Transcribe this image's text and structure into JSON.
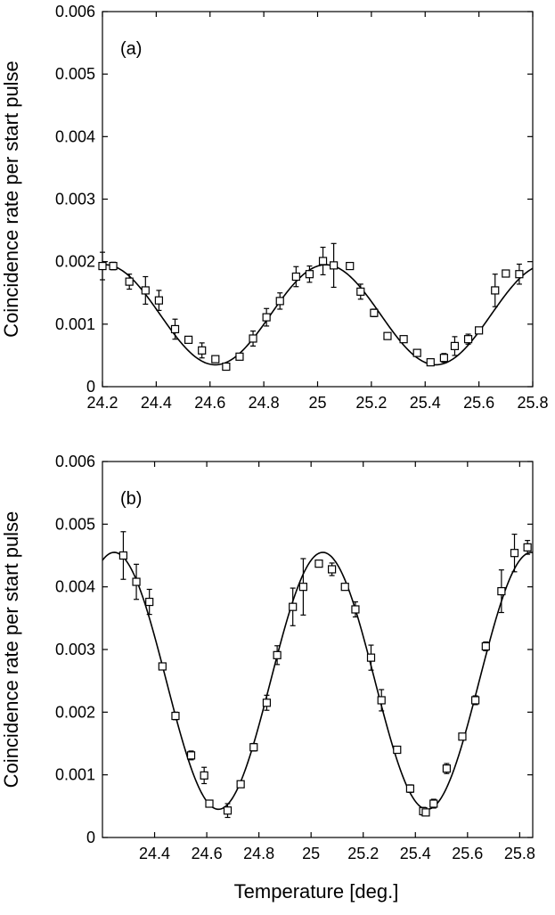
{
  "xlabel": "Temperature [deg.]",
  "chart_data": [
    {
      "type": "scatter",
      "panel_label": "(a)",
      "ylabel": "Coincidence rate per start pulse",
      "xlim": [
        24.2,
        25.8
      ],
      "ylim": [
        0,
        0.006
      ],
      "xticks": [
        24.2,
        24.4,
        24.6,
        24.8,
        25.0,
        25.2,
        25.4,
        25.6,
        25.8
      ],
      "xtick_labels": [
        "24.2",
        "24.4",
        "24.6",
        "24.8",
        "25",
        "25.2",
        "25.4",
        "25.6",
        "25.8"
      ],
      "yticks": [
        0,
        0.001,
        0.002,
        0.003,
        0.004,
        0.005,
        0.006
      ],
      "ytick_labels": [
        "0",
        "0.001",
        "0.002",
        "0.003",
        "0.004",
        "0.005",
        "0.006"
      ],
      "grid": false,
      "points": [
        {
          "x": 24.2,
          "y": 0.00193,
          "err": 0.00022
        },
        {
          "x": 24.24,
          "y": 0.00193,
          "err": 6e-05
        },
        {
          "x": 24.3,
          "y": 0.00168,
          "err": 0.00012
        },
        {
          "x": 24.36,
          "y": 0.00154,
          "err": 0.00022
        },
        {
          "x": 24.41,
          "y": 0.00138,
          "err": 0.00016
        },
        {
          "x": 24.47,
          "y": 0.00092,
          "err": 0.00016
        },
        {
          "x": 24.52,
          "y": 0.00075,
          "err": 5e-05
        },
        {
          "x": 24.57,
          "y": 0.00058,
          "err": 0.00012
        },
        {
          "x": 24.62,
          "y": 0.00044,
          "err": 5e-05
        },
        {
          "x": 24.66,
          "y": 0.00032,
          "err": 5e-05
        },
        {
          "x": 24.71,
          "y": 0.00048,
          "err": 4e-05
        },
        {
          "x": 24.76,
          "y": 0.00077,
          "err": 0.00012
        },
        {
          "x": 24.81,
          "y": 0.00111,
          "err": 0.00014
        },
        {
          "x": 24.86,
          "y": 0.00137,
          "err": 0.00013
        },
        {
          "x": 24.92,
          "y": 0.00176,
          "err": 0.00016
        },
        {
          "x": 24.97,
          "y": 0.0018,
          "err": 0.00013
        },
        {
          "x": 25.02,
          "y": 0.00201,
          "err": 0.00022
        },
        {
          "x": 25.06,
          "y": 0.00194,
          "err": 0.00035
        },
        {
          "x": 25.12,
          "y": 0.00193,
          "err": 5e-05
        },
        {
          "x": 25.16,
          "y": 0.00152,
          "err": 0.00012
        },
        {
          "x": 25.21,
          "y": 0.00118,
          "err": 6e-05
        },
        {
          "x": 25.26,
          "y": 0.00081,
          "err": 5e-05
        },
        {
          "x": 25.32,
          "y": 0.00076,
          "err": 5e-05
        },
        {
          "x": 25.37,
          "y": 0.00054,
          "err": 5e-05
        },
        {
          "x": 25.42,
          "y": 0.00039,
          "err": 5e-05
        },
        {
          "x": 25.47,
          "y": 0.00046,
          "err": 7e-05
        },
        {
          "x": 25.51,
          "y": 0.00065,
          "err": 0.00015
        },
        {
          "x": 25.56,
          "y": 0.00076,
          "err": 8e-05
        },
        {
          "x": 25.6,
          "y": 0.0009,
          "err": 5e-05
        },
        {
          "x": 25.66,
          "y": 0.00154,
          "err": 0.00026
        },
        {
          "x": 25.7,
          "y": 0.00181,
          "err": 5e-05
        },
        {
          "x": 25.75,
          "y": 0.0018,
          "err": 0.00016
        }
      ],
      "fit": {
        "offset": 0.00115,
        "amplitude": 0.0008,
        "center": 25.03,
        "period": 0.82,
        "color": "#000000"
      }
    },
    {
      "type": "scatter",
      "panel_label": "(b)",
      "ylabel": "Coincidence rate per start pulse",
      "xlim": [
        24.2,
        25.85
      ],
      "ylim": [
        0,
        0.006
      ],
      "xticks": [
        24.4,
        24.6,
        24.8,
        25.0,
        25.2,
        25.4,
        25.6,
        25.8
      ],
      "xtick_labels": [
        "24.4",
        "24.6",
        "24.8",
        "25",
        "25.2",
        "25.4",
        "25.6",
        "25.8"
      ],
      "yticks": [
        0,
        0.001,
        0.002,
        0.003,
        0.004,
        0.005,
        0.006
      ],
      "ytick_labels": [
        "0",
        "0.001",
        "0.002",
        "0.003",
        "0.004",
        "0.005",
        "0.006"
      ],
      "grid": false,
      "points": [
        {
          "x": 24.28,
          "y": 0.0045,
          "err": 0.00038
        },
        {
          "x": 24.33,
          "y": 0.00408,
          "err": 0.00028
        },
        {
          "x": 24.38,
          "y": 0.00376,
          "err": 0.0002
        },
        {
          "x": 24.43,
          "y": 0.00273,
          "err": 5e-05
        },
        {
          "x": 24.48,
          "y": 0.00194,
          "err": 6e-05
        },
        {
          "x": 24.54,
          "y": 0.00131,
          "err": 7e-05
        },
        {
          "x": 24.59,
          "y": 0.00099,
          "err": 0.00013
        },
        {
          "x": 24.61,
          "y": 0.00054,
          "err": 5e-05
        },
        {
          "x": 24.68,
          "y": 0.00043,
          "err": 0.00011
        },
        {
          "x": 24.73,
          "y": 0.00085,
          "err": 5e-05
        },
        {
          "x": 24.78,
          "y": 0.00144,
          "err": 6e-05
        },
        {
          "x": 24.83,
          "y": 0.00215,
          "err": 0.00012
        },
        {
          "x": 24.87,
          "y": 0.00291,
          "err": 0.00015
        },
        {
          "x": 24.93,
          "y": 0.00368,
          "err": 0.0003
        },
        {
          "x": 24.97,
          "y": 0.004,
          "err": 0.00045
        },
        {
          "x": 25.03,
          "y": 0.00437,
          "err": 5e-05
        },
        {
          "x": 25.08,
          "y": 0.00428,
          "err": 0.0001
        },
        {
          "x": 25.13,
          "y": 0.004,
          "err": 5e-05
        },
        {
          "x": 25.17,
          "y": 0.00364,
          "err": 0.00012
        },
        {
          "x": 25.23,
          "y": 0.00287,
          "err": 0.0002
        },
        {
          "x": 25.27,
          "y": 0.00219,
          "err": 0.00017
        },
        {
          "x": 25.33,
          "y": 0.0014,
          "err": 5e-05
        },
        {
          "x": 25.38,
          "y": 0.00078,
          "err": 6e-05
        },
        {
          "x": 25.43,
          "y": 0.00042,
          "err": 6e-05
        },
        {
          "x": 25.44,
          "y": 0.0004,
          "err": 5e-05
        },
        {
          "x": 25.47,
          "y": 0.00054,
          "err": 7e-05
        },
        {
          "x": 25.52,
          "y": 0.0011,
          "err": 8e-05
        },
        {
          "x": 25.58,
          "y": 0.00161,
          "err": 5e-05
        },
        {
          "x": 25.63,
          "y": 0.00219,
          "err": 7e-05
        },
        {
          "x": 25.67,
          "y": 0.00305,
          "err": 7e-05
        },
        {
          "x": 25.73,
          "y": 0.00393,
          "err": 0.00034
        },
        {
          "x": 25.78,
          "y": 0.00454,
          "err": 0.0003
        },
        {
          "x": 25.83,
          "y": 0.00463,
          "err": 0.00011
        }
      ],
      "fit": {
        "offset": 0.0025,
        "amplitude": 0.00205,
        "center": 25.045,
        "period": 0.8,
        "color": "#000000"
      }
    }
  ]
}
